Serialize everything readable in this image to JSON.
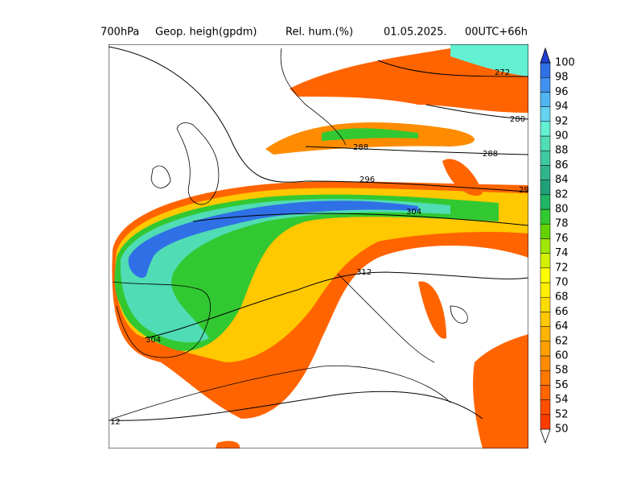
{
  "title": [
    "700hPa",
    "Geop. heigh(gpdm)",
    "Rel. hum.(%)",
    "01.05.2025.",
    "00UTC+66h"
  ],
  "colorbar": {
    "levels": [
      50,
      52,
      54,
      56,
      58,
      60,
      62,
      64,
      66,
      68,
      70,
      72,
      74,
      76,
      78,
      80,
      82,
      84,
      86,
      88,
      90,
      92,
      94,
      96,
      98,
      100
    ],
    "colors": [
      "#ff3c00",
      "#ff5000",
      "#ff6400",
      "#ff7800",
      "#ff8c00",
      "#ffa000",
      "#ffb400",
      "#ffc800",
      "#ffdc00",
      "#fff000",
      "#ffff00",
      "#d2f000",
      "#a0e600",
      "#64d200",
      "#32c832",
      "#20b464",
      "#20a078",
      "#30b48c",
      "#40c8a0",
      "#50dcb4",
      "#64f0d2",
      "#64d2f0",
      "#50b4f0",
      "#4090f0",
      "#3070e6",
      "#2040d2"
    ]
  },
  "contour_labels": [
    "272",
    "280",
    "288",
    "288",
    "296",
    "29",
    "304",
    "304",
    "312",
    "12"
  ]
}
